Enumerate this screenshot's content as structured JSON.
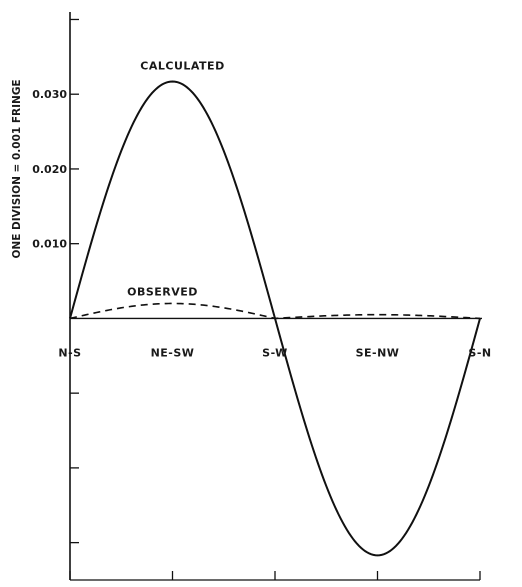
{
  "chart_data": {
    "type": "line",
    "ylabel": "ONE DIVISION = 0.001 FRINGE",
    "y_ticks": [
      "0.030",
      "0.020",
      "0.010"
    ],
    "y_tick_values": [
      0.03,
      0.02,
      0.01
    ],
    "ylim": [
      -0.035,
      0.041
    ],
    "categories": [
      "N-S",
      "NE-SW",
      "S-W",
      "SE-NW",
      "S-N"
    ],
    "x_range": [
      0,
      4
    ],
    "grid": false,
    "series": [
      {
        "name": "CALCULATED",
        "style": "solid",
        "x": [
          0,
          0.5,
          1,
          1.5,
          2,
          2.5,
          3,
          3.5,
          4
        ],
        "values": [
          0,
          0.0224,
          0.0317,
          0.0224,
          0,
          -0.0224,
          -0.0317,
          -0.0224,
          0
        ]
      },
      {
        "name": "OBSERVED",
        "style": "dashed",
        "x": [
          0,
          0.5,
          1,
          1.5,
          2,
          2.5,
          3,
          3.5,
          4
        ],
        "values": [
          0,
          0.0014,
          0.002,
          0.0013,
          0,
          0.0003,
          0.0005,
          0.0003,
          0
        ]
      }
    ]
  }
}
